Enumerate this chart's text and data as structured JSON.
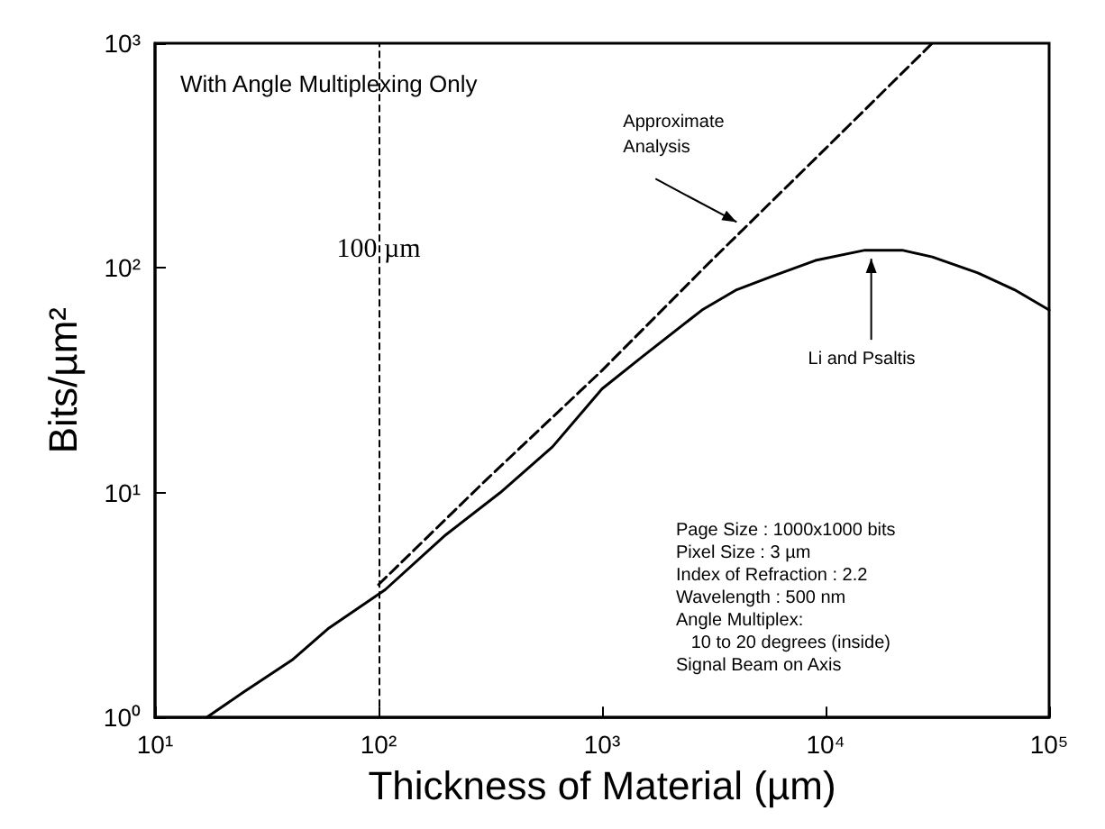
{
  "chart_data": {
    "type": "line",
    "xlabel": "Thickness of Material (µm)",
    "ylabel": "Bits/µm²",
    "log": "xy",
    "xlim": [
      10,
      100000
    ],
    "ylim": [
      1,
      1000
    ],
    "xticks": [
      {
        "value": 10,
        "label": "10¹"
      },
      {
        "value": 100,
        "label": "10²"
      },
      {
        "value": 1000,
        "label": "10³"
      },
      {
        "value": 10000,
        "label": "10⁴"
      },
      {
        "value": 100000,
        "label": "10⁵"
      }
    ],
    "yticks": [
      {
        "value": 1,
        "label": "10⁰"
      },
      {
        "value": 10,
        "label": "10¹"
      },
      {
        "value": 100,
        "label": "10²"
      },
      {
        "value": 1000,
        "label": "10³"
      }
    ],
    "grid": false,
    "marker": "none",
    "series": [
      {
        "color": "#000000",
        "line_style": "dashed",
        "x": [
          100,
          300,
          1000,
          3000,
          10000,
          30000
        ],
        "values": [
          3.9,
          11.3,
          35,
          105,
          340,
          1000
        ]
      },
      {
        "color": "#000000",
        "line_style": "solid",
        "x": [
          17,
          25,
          41,
          60,
          107,
          200,
          350,
          600,
          1000,
          1500,
          2800,
          4000,
          5800,
          9000,
          15000,
          22000,
          30000,
          48000,
          70000,
          100000
        ],
        "values": [
          1,
          1.3,
          1.8,
          2.5,
          3.7,
          6.5,
          10,
          16,
          29,
          40,
          65,
          80,
          92,
          108,
          120,
          120,
          112,
          95,
          80,
          65
        ]
      }
    ],
    "ref_lines": [
      {
        "axis": "x",
        "value": 100,
        "label": "100 µm",
        "color": "#000000",
        "line_style": "dashed"
      }
    ],
    "annotations": [
      "With Angle Multiplexing Only",
      {
        "text": "Approximate\nAnalysis",
        "x": 4000,
        "y": 160
      },
      {
        "text": "Li and Psaltis",
        "x": 16000,
        "y": 110
      },
      "Page Size : 1000x1000 bits\nPixel Size : 3 µm\nIndex of Refraction : 2.2\nWavelength : 500 nm\nAngle Multiplex:\n   10 to 20 degrees (inside)\nSignal Beam on Axis"
    ]
  }
}
